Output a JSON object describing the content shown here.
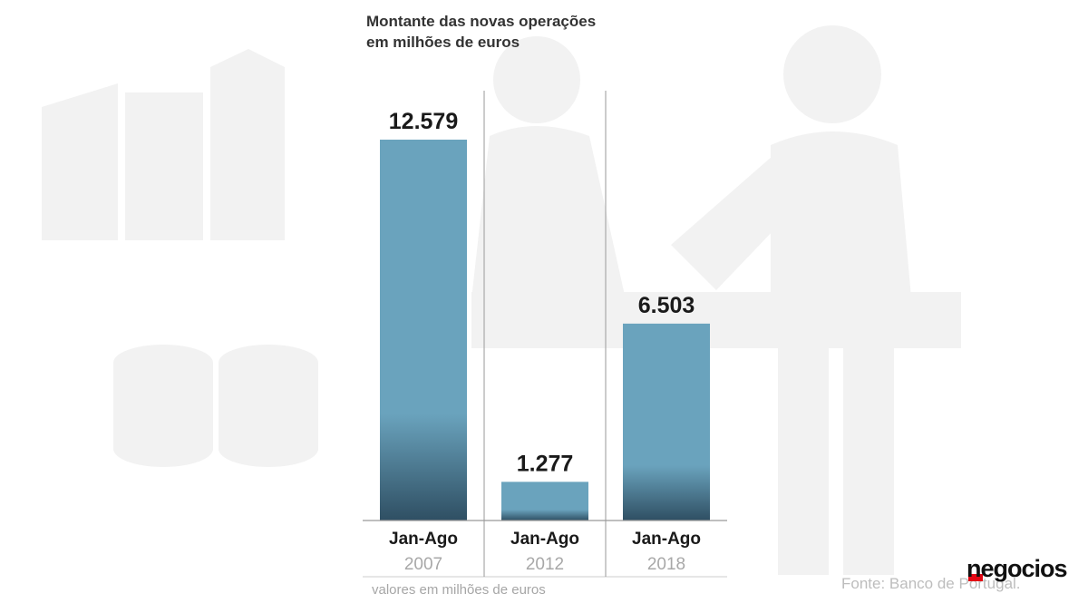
{
  "title_lines": [
    "Montante das novas operações",
    "em milhões de euros"
  ],
  "footnote": "valores em milhões de euros",
  "source": "Fonte: Banco de Portugal.",
  "brand": "negocios",
  "colors": {
    "bar_top": "#6aa3bd",
    "bar_bottom": "#2f4f63",
    "background_art": "#f2f2f2",
    "axis": "#999999",
    "value_label": "#1a1a1a",
    "period_label": "#1a1a1a",
    "year_label": "#a8a8a8",
    "brand_accent": "#e30613"
  },
  "chart_data": {
    "type": "bar",
    "title": "Montante das novas operações em milhões de euros",
    "categories": [
      "Jan-Ago 2007",
      "Jan-Ago 2012",
      "Jan-Ago 2018"
    ],
    "period_labels": [
      "Jan-Ago",
      "Jan-Ago",
      "Jan-Ago"
    ],
    "year_labels": [
      "2007",
      "2012",
      "2018"
    ],
    "values": [
      12579,
      1277,
      6503
    ],
    "value_labels": [
      "12.579",
      "1.277",
      "6.503"
    ],
    "unit": "milhões de euros",
    "ylim": [
      0,
      12579
    ],
    "grid": false,
    "legend": "none"
  }
}
